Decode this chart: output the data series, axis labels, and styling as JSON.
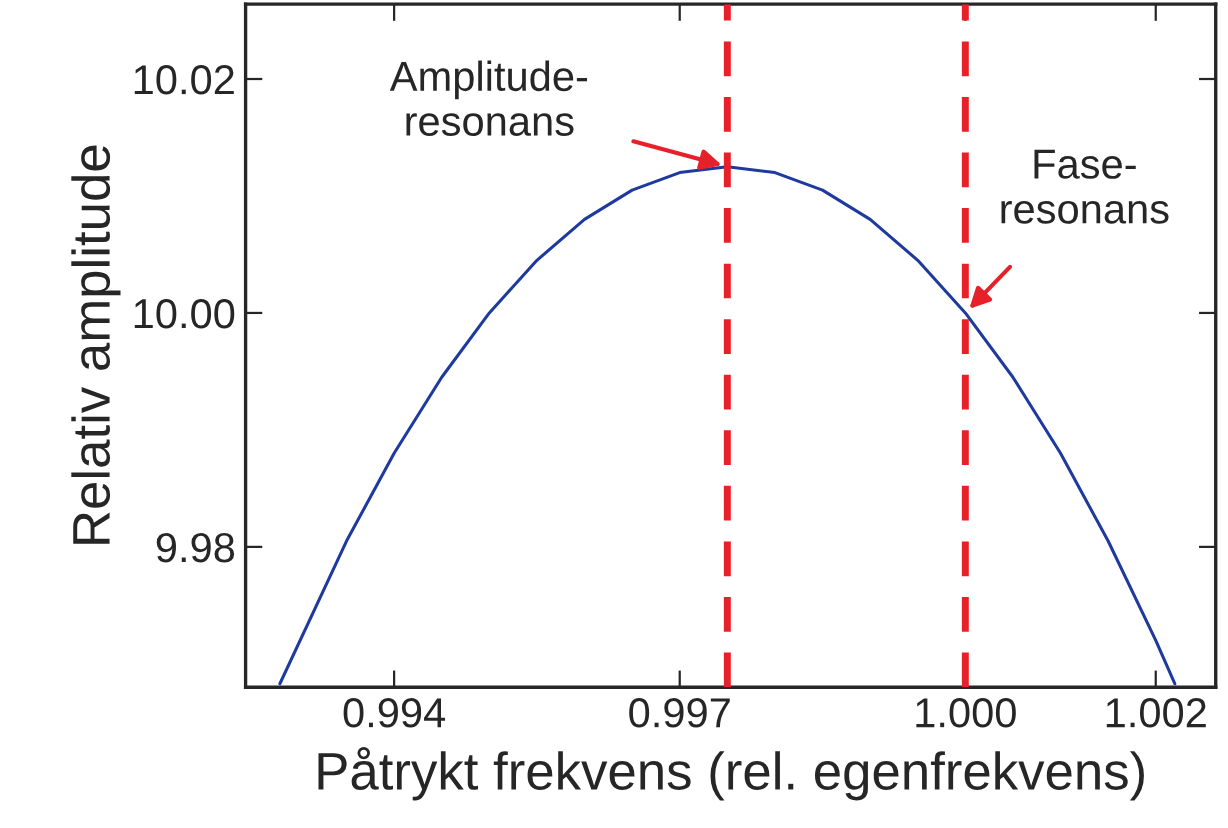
{
  "chart_data": {
    "type": "line",
    "xlabel": "Påtrykt frekvens (rel. egenfrekvens)",
    "ylabel": "Relativ amplitude",
    "x": [
      0.9928,
      0.9935,
      0.994,
      0.9945,
      0.995,
      0.9955,
      0.996,
      0.9965,
      0.997,
      0.9975,
      0.998,
      0.9985,
      0.999,
      0.9995,
      1.0,
      1.0005,
      1.001,
      1.0015,
      1.002,
      1.0022
    ],
    "series": [
      {
        "color": "#1f3a9e",
        "values": [
          9.9683,
          9.9805,
          9.988,
          9.9945,
          10.0,
          10.0045,
          10.008,
          10.0105,
          10.012,
          10.0125,
          10.012,
          10.0105,
          10.008,
          10.0045,
          10.0,
          9.9945,
          9.988,
          9.9805,
          9.972,
          9.9683
        ]
      }
    ],
    "xlim": [
      0.99244,
      1.00263
    ],
    "ylim": [
      9.968,
      10.0264
    ],
    "xticks": [
      0.994,
      0.997,
      {
        "value": 1.0,
        "label": "1.000"
      },
      1.002
    ],
    "yticks": [
      9.98,
      {
        "value": 10.0,
        "label": "10.00"
      },
      10.02
    ],
    "ref_lines": [
      {
        "axis": "x",
        "value": 0.9975,
        "color": "#e8202a",
        "line_style": "dashed"
      },
      {
        "axis": "x",
        "value": 1.0,
        "color": "#e8202a",
        "line_style": "dashed"
      }
    ],
    "annotations": [
      {
        "text": "Amplitude-\nresonans",
        "x": 0.9975,
        "y": 10.0125
      },
      {
        "text": "Fase-\nresonans",
        "x": 1.0,
        "y": 10.0
      }
    ],
    "grid": false,
    "legend": false
  }
}
